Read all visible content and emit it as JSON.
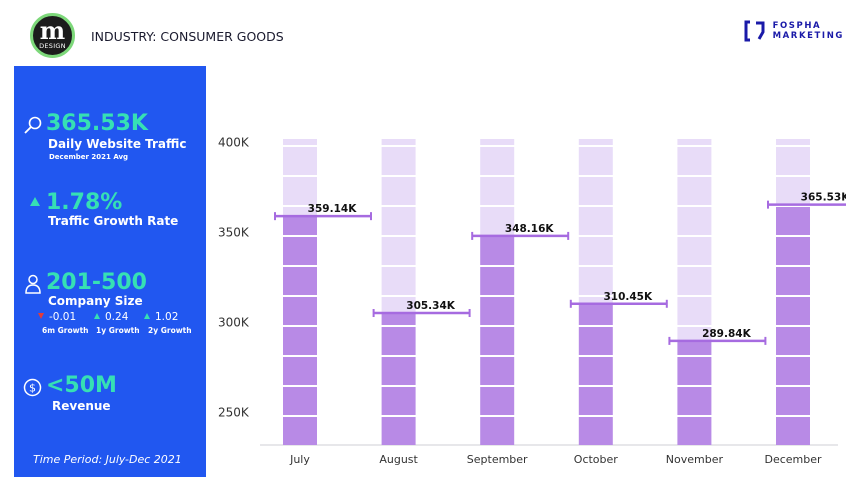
{
  "header": {
    "logo_letter": "m",
    "logo_text": "DESIGN",
    "industry": "INDUSTRY: CONSUMER GOODS",
    "brand_line1": "FOSPHA",
    "brand_line2": "MARKETING",
    "brand_color": "#1a1aa8"
  },
  "sidebar": {
    "traffic_value": "365.53K",
    "traffic_label": "Daily Website Traffic",
    "traffic_sub": "December 2021 Avg",
    "growth_value": "1.78%",
    "growth_label": "Traffic Growth Rate",
    "company_size_value": "201-500",
    "company_size_label": "Company Size",
    "growth_6m_value": "-0.01",
    "growth_6m_label": "6m Growth",
    "growth_1y_value": "0.24",
    "growth_1y_label": "1y Growth",
    "growth_2y_value": "1.02",
    "growth_2y_label": "2y Growth",
    "revenue_value": "<50M",
    "revenue_label": "Revenue",
    "time_period": "Time Period: July-Dec 2021",
    "background_color": "#2157f0",
    "accent_color": "#36e0b4",
    "negative_color": "#e23b3b"
  },
  "chart_data": {
    "type": "bar",
    "categories": [
      "July",
      "August",
      "September",
      "October",
      "November",
      "December"
    ],
    "values": [
      359.14,
      305.34,
      348.16,
      310.45,
      289.84,
      365.53
    ],
    "value_labels": [
      "359.14K",
      "305.34K",
      "348.16K",
      "310.45K",
      "289.84K",
      "365.53K"
    ],
    "background_max": 402,
    "y_ticks": [
      250,
      300,
      350,
      400
    ],
    "y_tick_labels": [
      "250K",
      "300K",
      "350K",
      "400K"
    ],
    "ylim": [
      232,
      410
    ],
    "title": "",
    "xlabel": "",
    "ylabel": "",
    "filled_color": "#b88ae6",
    "empty_color": "#e8dcf8",
    "marker_color": "#a66be0",
    "grid": false
  }
}
